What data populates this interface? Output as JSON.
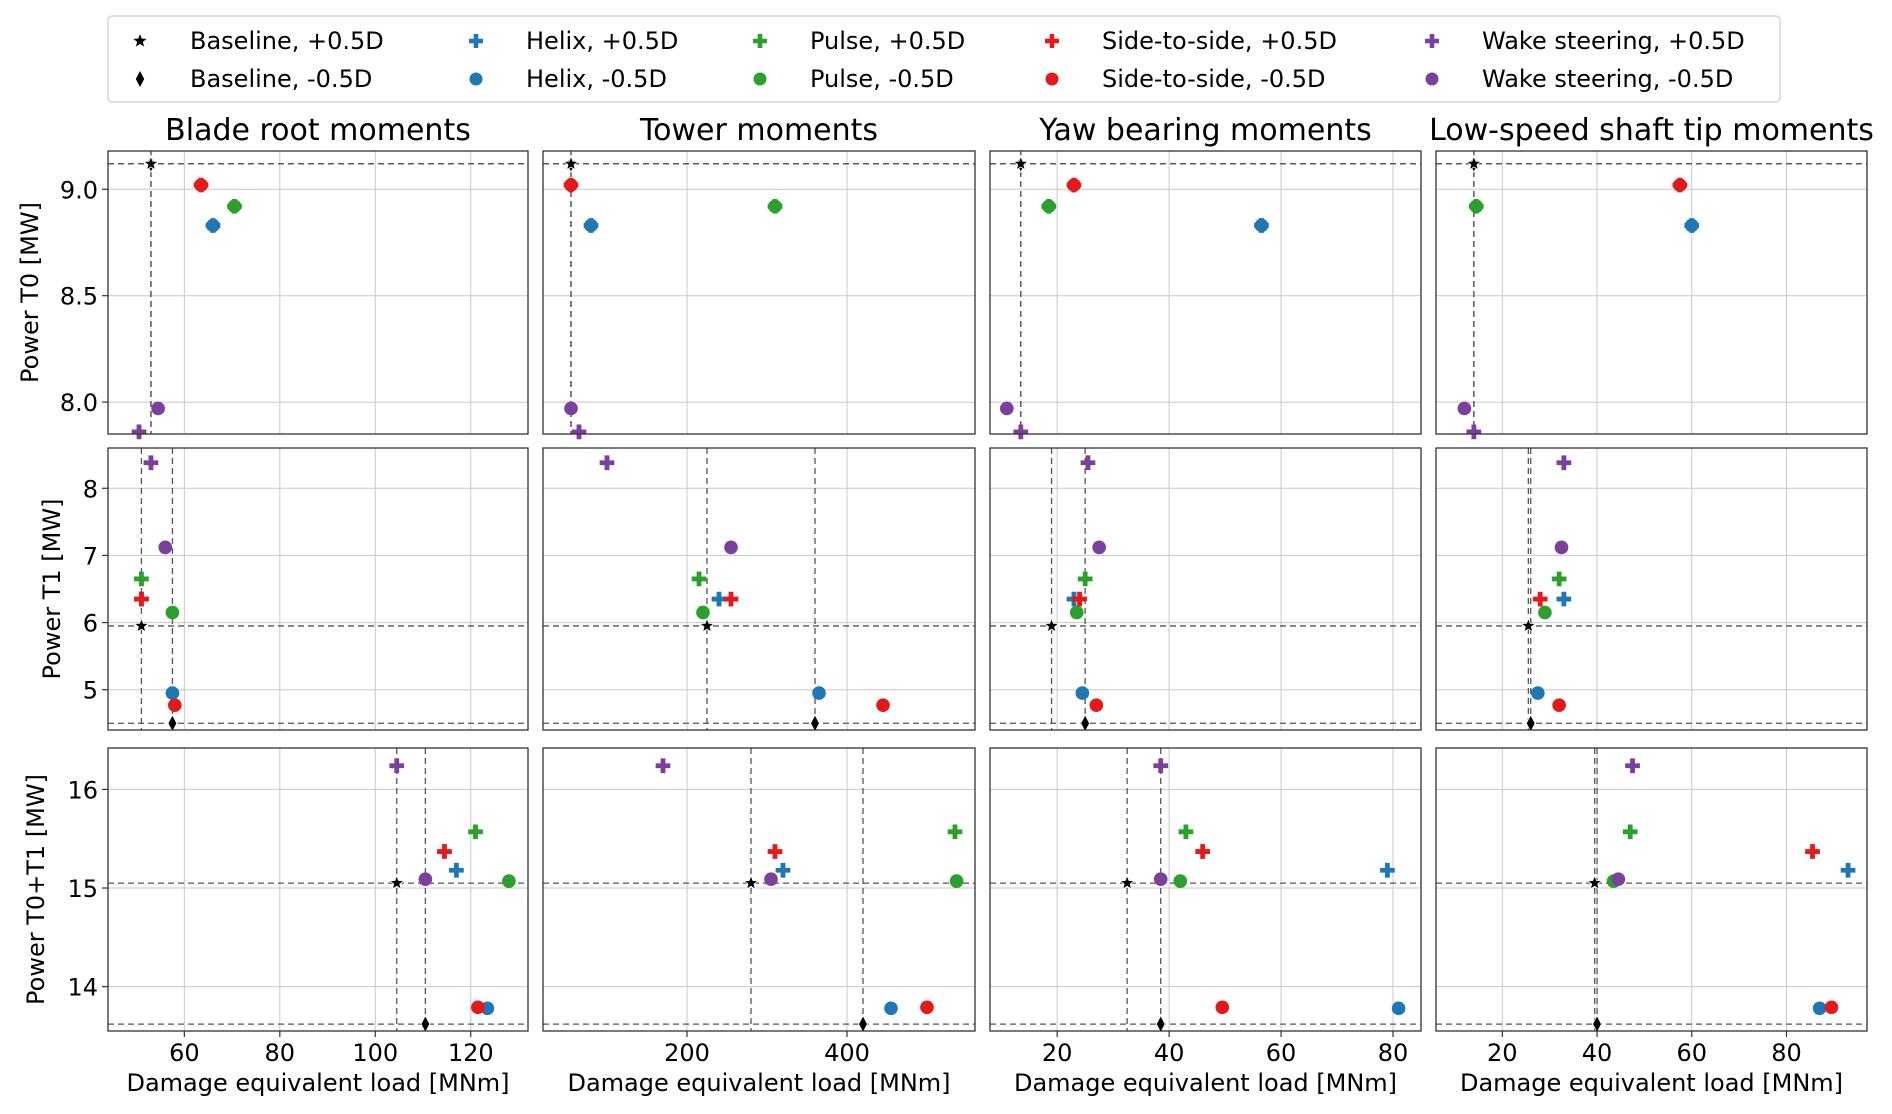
{
  "colors": {
    "baseline": "#000000",
    "helix": "#1f77b4",
    "pulse": "#2ca02c",
    "side_to_side": "#e31a1c",
    "wake_steering": "#7b3f9e",
    "grid": "#c8c8c8",
    "ref_line": "#555555"
  },
  "legend": {
    "placement": "top-center",
    "entries": [
      {
        "label": "Baseline, +0.5D",
        "marker": "star",
        "color_key": "baseline"
      },
      {
        "label": "Baseline, -0.5D",
        "marker": "diamond",
        "color_key": "baseline"
      },
      {
        "label": "Helix, +0.5D",
        "marker": "plus",
        "color_key": "helix"
      },
      {
        "label": "Helix, -0.5D",
        "marker": "circle",
        "color_key": "helix"
      },
      {
        "label": "Pulse, +0.5D",
        "marker": "plus",
        "color_key": "pulse"
      },
      {
        "label": "Pulse, -0.5D",
        "marker": "circle",
        "color_key": "pulse"
      },
      {
        "label": "Side-to-side, +0.5D",
        "marker": "plus",
        "color_key": "side_to_side"
      },
      {
        "label": "Side-to-side, -0.5D",
        "marker": "circle",
        "color_key": "side_to_side"
      },
      {
        "label": "Wake steering, +0.5D",
        "marker": "plus",
        "color_key": "wake_steering"
      },
      {
        "label": "Wake steering, -0.5D",
        "marker": "circle",
        "color_key": "wake_steering"
      }
    ]
  },
  "columns": [
    {
      "title": "Blade root moments",
      "xlim": [
        44,
        132
      ],
      "xticks": [
        60,
        80,
        100,
        120
      ],
      "xlabel": "Damage equivalent load [MNm]"
    },
    {
      "title": "Tower moments",
      "xlim": [
        20,
        560
      ],
      "xticks": [
        200,
        400
      ],
      "xlabel": "Damage equivalent load [MNm]"
    },
    {
      "title": "Yaw bearing moments",
      "xlim": [
        8,
        85
      ],
      "xticks": [
        20,
        40,
        60,
        80
      ],
      "xlabel": "Damage equivalent load [MNm]"
    },
    {
      "title": "Low-speed shaft tip moments",
      "xlim": [
        6,
        97
      ],
      "xticks": [
        20,
        40,
        60,
        80
      ],
      "xlabel": "Damage equivalent load [MNm]"
    }
  ],
  "rows": [
    {
      "ylabel": "Power T0 [MW]",
      "ylim": [
        7.85,
        9.18
      ],
      "yticks": [
        8.0,
        8.5,
        9.0
      ],
      "ytick_labels": [
        "8.0",
        "8.5",
        "9.0"
      ]
    },
    {
      "ylabel": "Power T1 [MW]",
      "ylim": [
        4.4,
        8.6
      ],
      "yticks": [
        5,
        6,
        7,
        8
      ],
      "ytick_labels": [
        "5",
        "6",
        "7",
        "8"
      ]
    },
    {
      "ylabel": "Power T0+T1 [MW]",
      "ylim": [
        13.55,
        16.42
      ],
      "yticks": [
        14,
        15,
        16
      ],
      "ytick_labels": [
        "14",
        "15",
        "16"
      ]
    }
  ],
  "chart_data": {
    "type": "scatter",
    "grid": true,
    "layout": "3 rows x 4 columns",
    "reference_lines": "dashed lines at the baseline +0.5D and baseline -0.5D values",
    "power": {
      "rows": [
        "Power T0 [MW]",
        "Power T1 [MW]",
        "Power T0+T1 [MW]"
      ],
      "series": [
        {
          "name": "Baseline, +0.5D",
          "values": [
            9.12,
            5.95,
            15.05
          ]
        },
        {
          "name": "Baseline, -0.5D",
          "values": [
            9.12,
            4.5,
            13.62
          ]
        },
        {
          "name": "Helix, +0.5D",
          "values": [
            8.83,
            6.35,
            15.18
          ]
        },
        {
          "name": "Helix, -0.5D",
          "values": [
            8.83,
            4.95,
            13.78
          ]
        },
        {
          "name": "Pulse, +0.5D",
          "values": [
            8.92,
            6.65,
            15.57
          ]
        },
        {
          "name": "Pulse, -0.5D",
          "values": [
            8.92,
            6.15,
            15.07
          ]
        },
        {
          "name": "Side-to-side, +0.5D",
          "values": [
            9.02,
            6.35,
            15.37
          ]
        },
        {
          "name": "Side-to-side, -0.5D",
          "values": [
            9.02,
            4.77,
            13.79
          ]
        },
        {
          "name": "Wake steering, +0.5D",
          "values": [
            7.86,
            8.38,
            16.24
          ]
        },
        {
          "name": "Wake steering, -0.5D",
          "values": [
            7.97,
            7.12,
            15.09
          ]
        }
      ]
    },
    "damage_equivalent_load": {
      "columns": [
        "Blade root moments",
        "Tower moments",
        "Yaw bearing moments",
        "Low-speed shaft tip moments"
      ],
      "T0": [
        {
          "name": "Baseline, +0.5D",
          "values": [
            53,
            55,
            13.5,
            14
          ]
        },
        {
          "name": "Baseline, -0.5D",
          "values": [
            53,
            55,
            13.5,
            14
          ]
        },
        {
          "name": "Helix, +0.5D",
          "values": [
            66,
            80,
            56.5,
            60
          ]
        },
        {
          "name": "Helix, -0.5D",
          "values": [
            66,
            80,
            56.5,
            60
          ]
        },
        {
          "name": "Pulse, +0.5D",
          "values": [
            70.5,
            310,
            18.5,
            14.5
          ]
        },
        {
          "name": "Pulse, -0.5D",
          "values": [
            70.5,
            310,
            18.5,
            14.5
          ]
        },
        {
          "name": "Side-to-side, +0.5D",
          "values": [
            63.5,
            55,
            23,
            57.5
          ]
        },
        {
          "name": "Side-to-side, -0.5D",
          "values": [
            63.5,
            55,
            23,
            57.5
          ]
        },
        {
          "name": "Wake steering, +0.5D",
          "values": [
            50.5,
            65,
            13.5,
            14
          ]
        },
        {
          "name": "Wake steering, -0.5D",
          "values": [
            54.5,
            55,
            11,
            12
          ]
        }
      ],
      "T1": [
        {
          "name": "Baseline, +0.5D",
          "values": [
            51,
            225,
            19,
            25.5
          ]
        },
        {
          "name": "Baseline, -0.5D",
          "values": [
            57.5,
            360,
            25,
            26
          ]
        },
        {
          "name": "Helix, +0.5D",
          "values": [
            51,
            240,
            23,
            33
          ]
        },
        {
          "name": "Helix, -0.5D",
          "values": [
            57.5,
            365,
            24.5,
            27.5
          ]
        },
        {
          "name": "Pulse, +0.5D",
          "values": [
            51,
            215,
            25,
            32
          ]
        },
        {
          "name": "Pulse, -0.5D",
          "values": [
            57.5,
            220,
            23.5,
            29
          ]
        },
        {
          "name": "Side-to-side, +0.5D",
          "values": [
            51,
            255,
            24,
            28
          ]
        },
        {
          "name": "Side-to-side, -0.5D",
          "values": [
            58,
            445,
            27,
            32
          ]
        },
        {
          "name": "Wake steering, +0.5D",
          "values": [
            53,
            100,
            25.5,
            33
          ]
        },
        {
          "name": "Wake steering, -0.5D",
          "values": [
            56,
            255,
            27.5,
            32.5
          ]
        }
      ],
      "T0+T1": [
        {
          "name": "Baseline, +0.5D",
          "values": [
            104.5,
            280,
            32.5,
            39.5
          ]
        },
        {
          "name": "Baseline, -0.5D",
          "values": [
            110.5,
            420,
            38.5,
            40
          ]
        },
        {
          "name": "Helix, +0.5D",
          "values": [
            117,
            320,
            79,
            93
          ]
        },
        {
          "name": "Helix, -0.5D",
          "values": [
            123.5,
            455,
            81,
            87
          ]
        },
        {
          "name": "Pulse, +0.5D",
          "values": [
            121,
            535,
            43,
            47
          ]
        },
        {
          "name": "Pulse, -0.5D",
          "values": [
            128,
            537,
            42,
            43.5
          ]
        },
        {
          "name": "Side-to-side, +0.5D",
          "values": [
            114.5,
            310,
            46,
            85.5
          ]
        },
        {
          "name": "Side-to-side, -0.5D",
          "values": [
            121.5,
            500,
            49.5,
            89.5
          ]
        },
        {
          "name": "Wake steering, +0.5D",
          "values": [
            104.5,
            170,
            38.5,
            47.5
          ]
        },
        {
          "name": "Wake steering, -0.5D",
          "values": [
            110.5,
            305,
            38.5,
            44.5
          ]
        }
      ]
    }
  }
}
